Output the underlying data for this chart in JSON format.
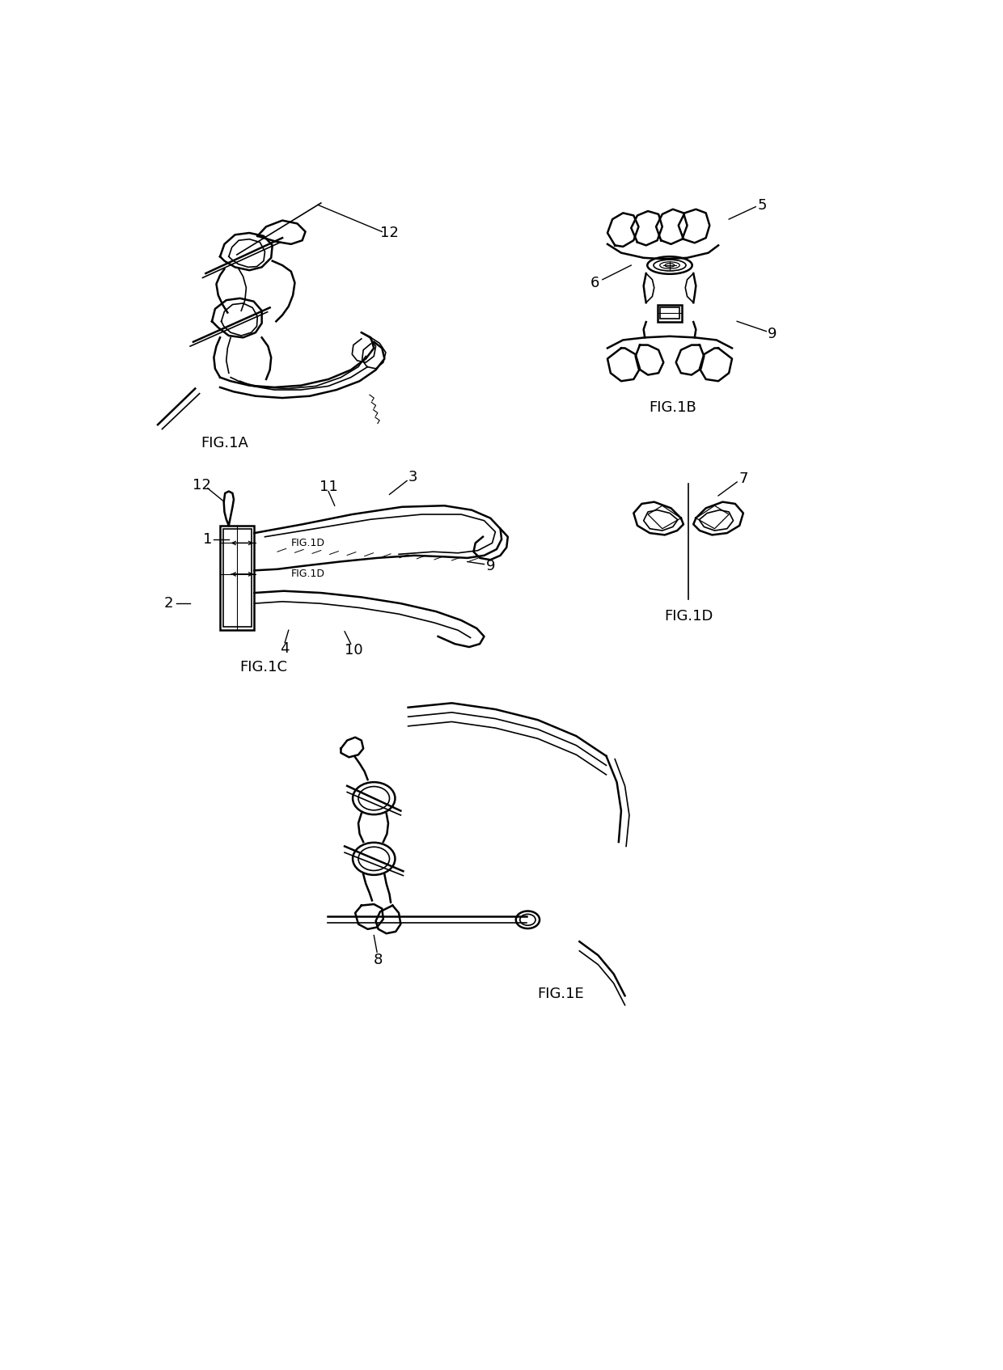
{
  "bg_color": "#ffffff",
  "fig_width": 12.4,
  "fig_height": 16.94,
  "dpi": 100,
  "line_color": "#000000",
  "labels": {
    "fig1a": "FIG.1A",
    "fig1b": "FIG.1B",
    "fig1c": "FIG.1C",
    "fig1d": "FIG.1D",
    "fig1e": "FIG.1E"
  },
  "label_fontsize": 13,
  "ref_fontsize": 13,
  "anno_fontsize": 9
}
